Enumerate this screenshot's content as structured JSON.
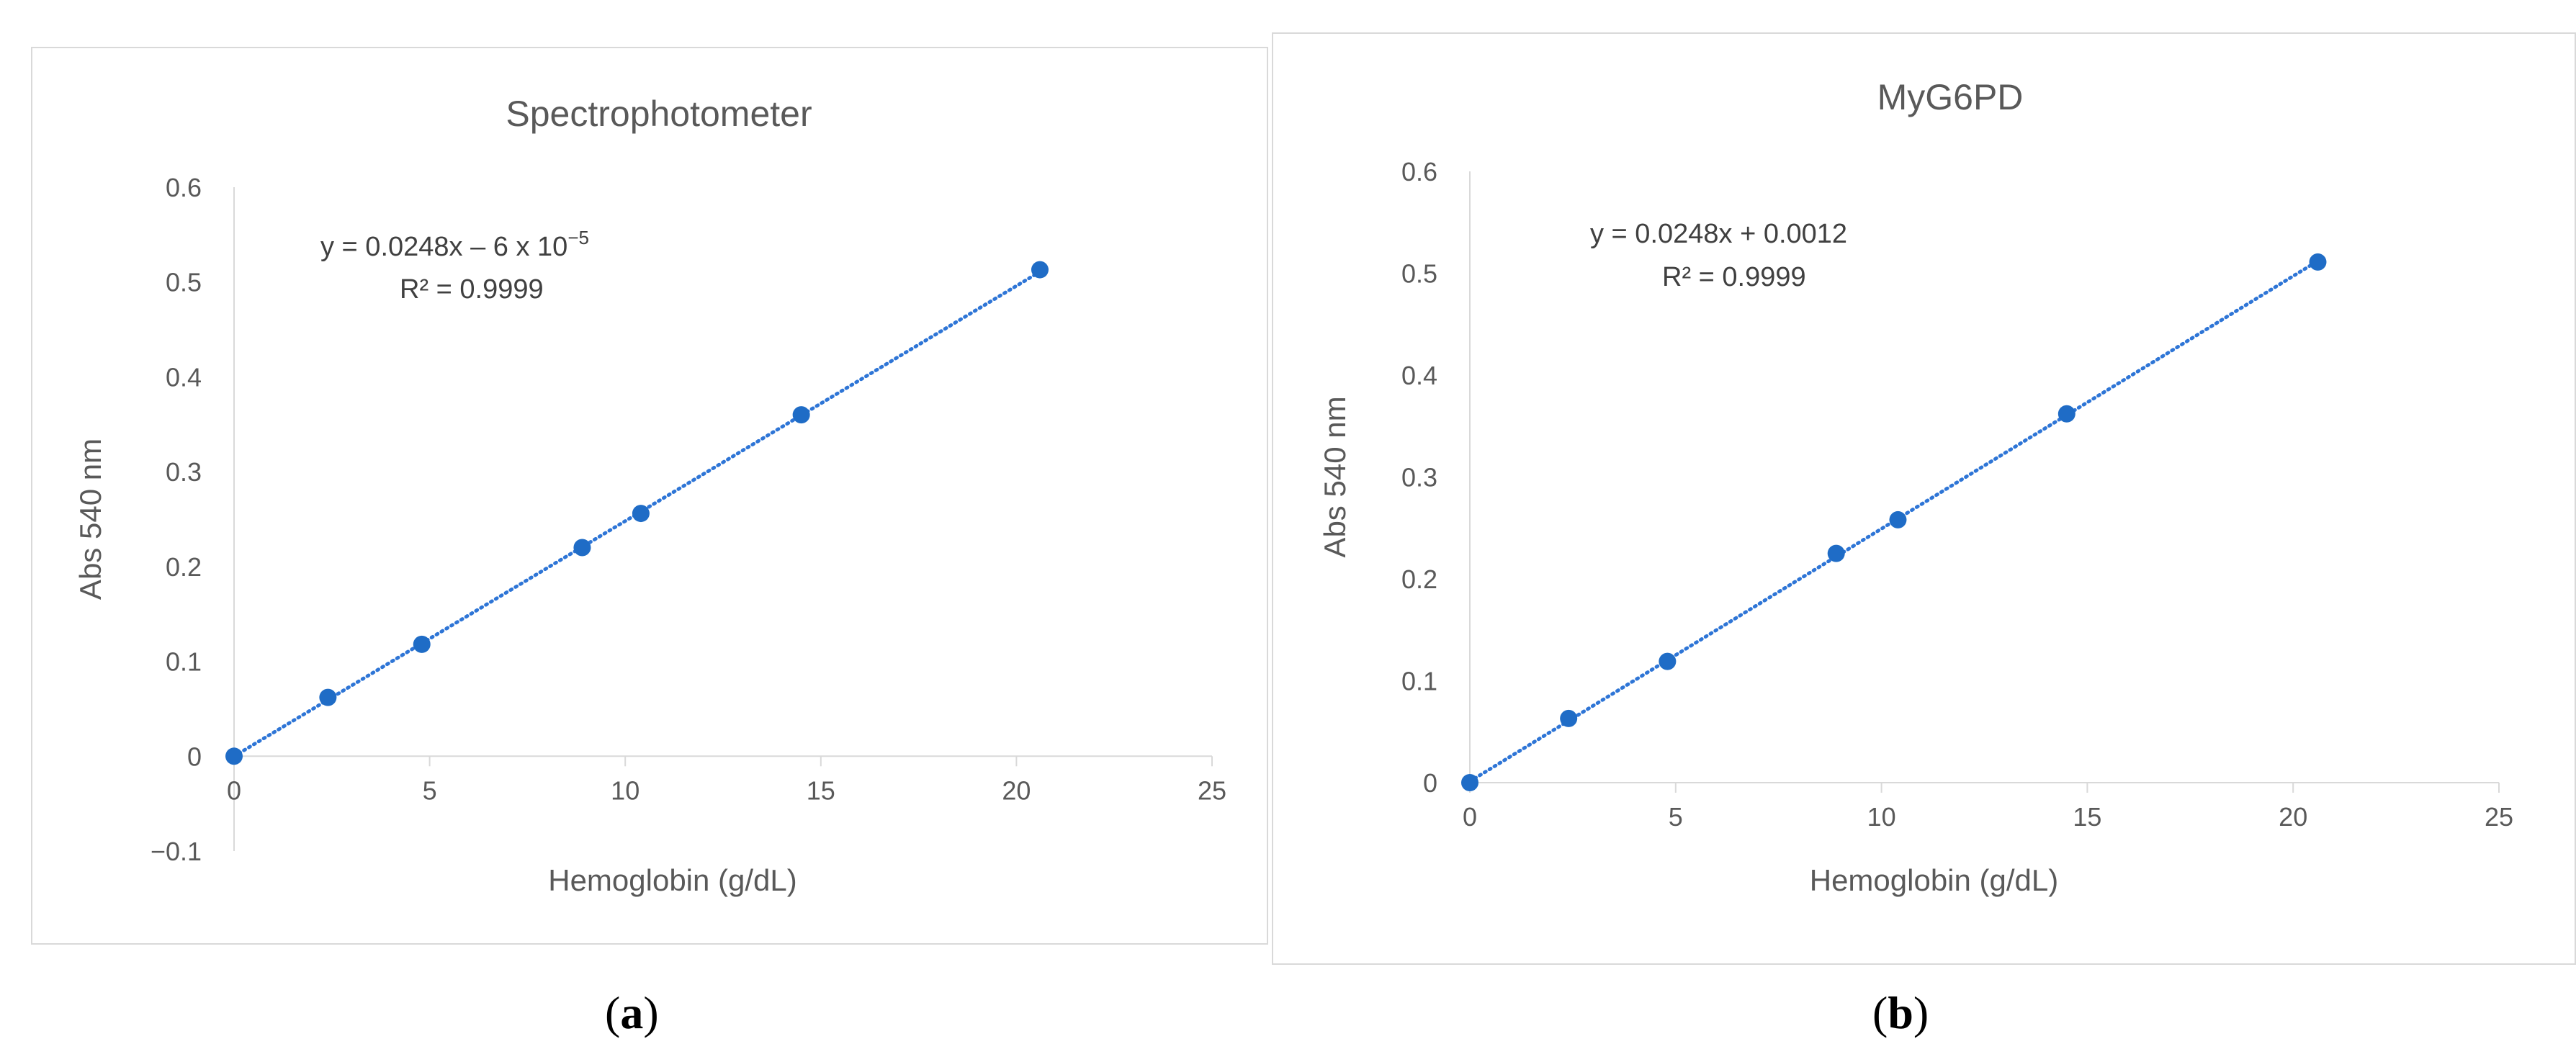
{
  "colors": {
    "series": "#1f6cc6",
    "trendline": "#2e75d6",
    "axis": "#d9d9d9",
    "text": "#595959"
  },
  "chart_data": [
    {
      "type": "scatter",
      "title": "Spectrophotometer",
      "xlabel": "Hemoglobin (g/dL)",
      "ylabel": "Abs 540 nm",
      "xlim": [
        0,
        25
      ],
      "ylim": [
        -0.1,
        0.6
      ],
      "xticks": [
        0,
        5,
        10,
        15,
        20,
        25
      ],
      "yticks": [
        -0.1,
        0,
        0.1,
        0.2,
        0.3,
        0.4,
        0.5,
        0.6
      ],
      "ytick_labels": [
        "−0.1",
        "0",
        "0.1",
        "0.2",
        "0.3",
        "0.4",
        "0.5",
        "0.6"
      ],
      "grid": false,
      "x": [
        0,
        2.4,
        4.8,
        8.9,
        10.4,
        14.5,
        20.6
      ],
      "y": [
        0,
        0.062,
        0.118,
        0.22,
        0.256,
        0.36,
        0.513
      ],
      "trendline": {
        "slope": 0.0248,
        "intercept": -6e-05,
        "style": "dotted"
      },
      "equation": {
        "main": "y = 0.0248x – 6 x 10",
        "sup": "−5",
        "r2": "R² = 0.9999"
      },
      "panel_label": "a"
    },
    {
      "type": "scatter",
      "title": "MyG6PD",
      "xlabel": "Hemoglobin (g/dL)",
      "ylabel": "Abs 540 nm",
      "xlim": [
        0,
        25
      ],
      "ylim": [
        0,
        0.6
      ],
      "xticks": [
        0,
        5,
        10,
        15,
        20,
        25
      ],
      "yticks": [
        0,
        0.1,
        0.2,
        0.3,
        0.4,
        0.5,
        0.6
      ],
      "ytick_labels": [
        "0",
        "0.1",
        "0.2",
        "0.3",
        "0.4",
        "0.5",
        "0.6"
      ],
      "grid": false,
      "x": [
        0,
        2.4,
        4.8,
        8.9,
        10.4,
        14.5,
        20.6
      ],
      "y": [
        0,
        0.063,
        0.119,
        0.225,
        0.258,
        0.362,
        0.511
      ],
      "trendline": {
        "slope": 0.0248,
        "intercept": 0.0012,
        "style": "dotted"
      },
      "equation": {
        "main": "y = 0.0248x + 0.0012",
        "sup": "",
        "r2": "R² = 0.9999"
      },
      "panel_label": "b"
    }
  ]
}
